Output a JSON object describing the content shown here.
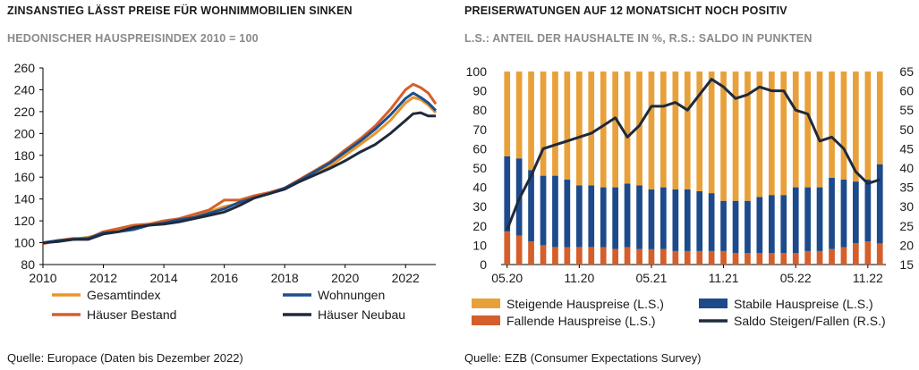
{
  "left": {
    "title": "ZINSANSTIEG LÄSST PREISE FÜR WOHNIMMOBILIEN SINKEN",
    "subtitle": "HEDONISCHER HAUSPREISINDEX 2010 = 100",
    "source": "Quelle: Europace (Daten bis Dezember 2022)"
  },
  "right": {
    "title": "PREISERWATUNGEN AUF 12 MONATSICHT NOCH POSITIV",
    "subtitle": "L.S.: ANTEIL DER HAUSHALTE IN %, R.S.: SALDO IN PUNKTEN",
    "source": "Quelle: EZB (Consumer Expectations Survey)"
  },
  "colors": {
    "gesamt": "#e8952d",
    "bestand": "#d65f28",
    "wohnungen": "#1d4f8c",
    "neubau": "#1f2a3c",
    "steigend": "#e8a13a",
    "stabil": "#1d4a8a",
    "fallend": "#d45f2a",
    "saldo": "#1f2a3c"
  },
  "chart_data": [
    {
      "type": "line",
      "title": "ZINSANSTIEG LÄSST PREISE FÜR WOHNIMMOBILIEN SINKEN",
      "subtitle": "HEDONISCHER HAUSPREISINDEX 2010 = 100",
      "xlim": [
        2010,
        2023
      ],
      "xticks": [
        "2010",
        "2012",
        "2014",
        "2016",
        "2018",
        "2020",
        "2022"
      ],
      "ylim": [
        80,
        260
      ],
      "yticks": [
        "80",
        "100",
        "120",
        "140",
        "160",
        "180",
        "200",
        "220",
        "240",
        "260"
      ],
      "legend": "bottom",
      "x": [
        2010,
        2010.5,
        2011,
        2011.5,
        2012,
        2012.5,
        2013,
        2013.5,
        2014,
        2014.5,
        2015,
        2015.5,
        2016,
        2016.5,
        2017,
        2017.5,
        2018,
        2018.5,
        2019,
        2019.5,
        2020,
        2020.5,
        2021,
        2021.5,
        2022,
        2022.25,
        2022.5,
        2022.75,
        2023
      ],
      "series": [
        {
          "name": "Gesamtindex",
          "key": "gesamt",
          "values": [
            100,
            101,
            103,
            105,
            108,
            111,
            113,
            116,
            118,
            121,
            124,
            128,
            133,
            136,
            141,
            145,
            150,
            156,
            163,
            170,
            180,
            190,
            200,
            212,
            228,
            233,
            231,
            226,
            219
          ]
        },
        {
          "name": "Häuser Bestand",
          "key": "bestand",
          "values": [
            99,
            102,
            104,
            104,
            110,
            113,
            116,
            117,
            120,
            122,
            126,
            130,
            139,
            139,
            143,
            146,
            150,
            158,
            166,
            174,
            185,
            195,
            207,
            222,
            240,
            245,
            242,
            237,
            227
          ]
        },
        {
          "name": "Wohnungen",
          "key": "wohnungen",
          "values": [
            100,
            102,
            103,
            104,
            109,
            110,
            112,
            116,
            118,
            121,
            123,
            127,
            131,
            137,
            141,
            145,
            150,
            157,
            165,
            173,
            183,
            193,
            204,
            217,
            232,
            237,
            233,
            228,
            221
          ]
        },
        {
          "name": "Häuser Neubau",
          "key": "neubau",
          "values": [
            100,
            101,
            103,
            103,
            108,
            110,
            114,
            116,
            117,
            119,
            122,
            125,
            128,
            134,
            141,
            145,
            149,
            156,
            162,
            168,
            175,
            183,
            190,
            200,
            212,
            218,
            219,
            216,
            216
          ]
        }
      ]
    },
    {
      "type": "bar",
      "stacked": true,
      "title": "PREISERWATUNGEN AUF 12 MONATSICHT NOCH POSITIV",
      "subtitle": "L.S.: ANTEIL DER HAUSHALTE IN %, R.S.: SALDO IN PUNKTEN",
      "xticks": [
        "05.20",
        "11.20",
        "05.21",
        "11.21",
        "05.22",
        "11.22"
      ],
      "ylim_left": [
        0,
        100
      ],
      "yticks_left": [
        "0",
        "10",
        "20",
        "30",
        "40",
        "50",
        "60",
        "70",
        "80",
        "90",
        "100"
      ],
      "ylim_right": [
        15,
        65
      ],
      "yticks_right": [
        "15",
        "20",
        "25",
        "30",
        "35",
        "40",
        "45",
        "50",
        "55",
        "60",
        "65"
      ],
      "legend": "bottom",
      "categories": [
        "05.20",
        "06.20",
        "07.20",
        "08.20",
        "09.20",
        "10.20",
        "11.20",
        "12.20",
        "01.21",
        "02.21",
        "03.21",
        "04.21",
        "05.21",
        "06.21",
        "07.21",
        "08.21",
        "09.21",
        "10.21",
        "11.21",
        "12.21",
        "01.22",
        "02.22",
        "03.22",
        "04.22",
        "05.22",
        "06.22",
        "07.22",
        "08.22",
        "09.22",
        "10.22",
        "11.22",
        "12.22"
      ],
      "series": [
        {
          "name": "Fallende Hauspreise (L.S.)",
          "key": "fallend",
          "axis": "left",
          "values": [
            17,
            15,
            12,
            10,
            9,
            9,
            9,
            9,
            9,
            8,
            9,
            8,
            8,
            8,
            7,
            7,
            7,
            7,
            7,
            6,
            6,
            6,
            6,
            6,
            6,
            7,
            7,
            8,
            9,
            11,
            12,
            11
          ]
        },
        {
          "name": "Stabile Hauspreise (L.S.)",
          "key": "stabil",
          "axis": "left",
          "values": [
            39,
            40,
            37,
            36,
            37,
            35,
            32,
            32,
            31,
            32,
            33,
            33,
            31,
            32,
            32,
            32,
            31,
            30,
            26,
            27,
            27,
            29,
            30,
            30,
            34,
            33,
            33,
            37,
            35,
            32,
            32,
            41
          ]
        },
        {
          "name": "Steigende Hauspreise (L.S.)",
          "key": "steigend",
          "axis": "left",
          "values": [
            44,
            45,
            51,
            54,
            54,
            56,
            59,
            59,
            60,
            60,
            58,
            59,
            61,
            60,
            61,
            61,
            62,
            63,
            67,
            67,
            67,
            65,
            64,
            64,
            60,
            60,
            60,
            55,
            56,
            57,
            56,
            48
          ]
        },
        {
          "name": "Saldo Steigen/Fallen (R.S.)",
          "key": "saldo",
          "axis": "right",
          "type": "line",
          "values": [
            24,
            32,
            38,
            45,
            46,
            47,
            48,
            49,
            51,
            53,
            48,
            51,
            56,
            56,
            57,
            55,
            59,
            63,
            61,
            58,
            59,
            61,
            60,
            60,
            55,
            54,
            47,
            48,
            45,
            39,
            36,
            37
          ]
        }
      ]
    }
  ]
}
